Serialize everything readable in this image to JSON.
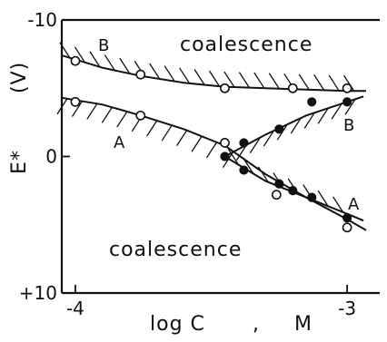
{
  "chart_data": {
    "type": "scatter",
    "title": "",
    "xlabel": "log C",
    "xlabel_unit": "M",
    "xlabel_separator": ",",
    "ylabel_symbol": "E*",
    "ylabel_unit": "(V)",
    "xlim": [
      -4.05,
      -2.88
    ],
    "ylim": [
      10,
      -10
    ],
    "x_ticks": [
      -4,
      -3
    ],
    "x_tick_labels": [
      "-4",
      "-3"
    ],
    "y_ticks": [
      -10,
      0,
      10
    ],
    "y_tick_labels": [
      "-10",
      "0",
      "+10"
    ],
    "grid": false,
    "legend": "none",
    "region_labels": [
      "coalescence",
      "coalescence"
    ],
    "series": [
      {
        "label": "B",
        "marker": "open",
        "x": [
          -4.0,
          -3.76,
          -3.45,
          -3.2,
          -3.0
        ],
        "y": [
          -7.0,
          -6.0,
          -5.0,
          -5.0,
          -5.0
        ]
      },
      {
        "label": "A",
        "marker": "open",
        "x": [
          -4.0,
          -3.76,
          -3.45,
          -3.26,
          -3.0
        ],
        "y": [
          -4.0,
          -3.0,
          -1.0,
          2.8,
          5.2
        ]
      },
      {
        "label": "B",
        "marker": "filled",
        "x": [
          -3.45,
          -3.38,
          -3.25,
          -3.13,
          -3.0
        ],
        "y": [
          0.0,
          -1.0,
          -2.0,
          -4.0,
          -4.0
        ]
      },
      {
        "label": "A",
        "marker": "filled",
        "x": [
          -3.38,
          -3.25,
          -3.2,
          -3.13,
          -3.0
        ],
        "y": [
          1.0,
          2.0,
          2.5,
          3.0,
          4.5
        ]
      }
    ],
    "curves": [
      {
        "label": "B",
        "x": [
          -4.05,
          -3.9,
          -3.76,
          -3.6,
          -3.45,
          -3.3,
          -3.15,
          -3.0,
          -2.93
        ],
        "y": [
          -7.4,
          -6.5,
          -5.9,
          -5.4,
          -5.1,
          -5.0,
          -4.9,
          -4.8,
          -4.8
        ]
      },
      {
        "label": "A",
        "x": [
          -4.05,
          -3.9,
          -3.76,
          -3.6,
          -3.45,
          -3.3,
          -3.15,
          -3.0,
          -2.93
        ],
        "y": [
          -4.3,
          -3.8,
          -3.0,
          -2.0,
          -0.8,
          1.3,
          3.0,
          4.6,
          5.4
        ]
      },
      {
        "label": "B",
        "x": [
          -3.45,
          -3.3,
          -3.15,
          -3.0,
          -2.94
        ],
        "y": [
          0.0,
          -1.6,
          -3.0,
          -4.0,
          -4.4
        ]
      },
      {
        "label": "A",
        "x": [
          -3.45,
          -3.3,
          -3.15,
          -3.0,
          -2.94
        ],
        "y": [
          0.0,
          1.8,
          3.0,
          4.2,
          4.7
        ]
      }
    ]
  }
}
